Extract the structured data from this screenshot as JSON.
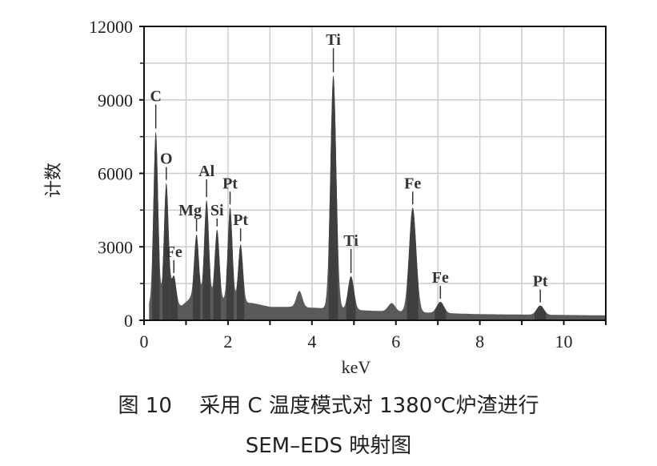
{
  "chart_data": {
    "type": "area",
    "title": "",
    "xlabel": "keV",
    "ylabel": "计数",
    "xlim": [
      0,
      11
    ],
    "ylim": [
      0,
      12000
    ],
    "x_ticks": [
      0,
      2,
      4,
      6,
      8,
      10
    ],
    "y_ticks": [
      0,
      3000,
      6000,
      9000,
      12000
    ],
    "grid": true,
    "legend": null,
    "peaks": [
      {
        "element": "C",
        "x": 0.28,
        "y": 7700
      },
      {
        "element": "O",
        "x": 0.53,
        "y": 5600
      },
      {
        "element": "Fe",
        "x": 0.71,
        "y": 1800
      },
      {
        "element": "Mg",
        "x": 1.25,
        "y": 3500
      },
      {
        "element": "Al",
        "x": 1.49,
        "y": 4900
      },
      {
        "element": "Si",
        "x": 1.74,
        "y": 3700
      },
      {
        "element": "Pt",
        "x": 2.05,
        "y": 4600
      },
      {
        "element": "Pt",
        "x": 2.3,
        "y": 3100
      },
      {
        "element": "Ti",
        "x": 4.51,
        "y": 10000
      },
      {
        "element": "Ti",
        "x": 4.93,
        "y": 1800
      },
      {
        "element": "Fe",
        "x": 6.4,
        "y": 4600
      },
      {
        "element": "Fe",
        "x": 7.06,
        "y": 750
      },
      {
        "element": "Pt",
        "x": 9.44,
        "y": 600
      }
    ],
    "unlabeled_peaks": [
      {
        "x": 3.7,
        "y": 1200
      },
      {
        "x": 5.9,
        "y": 700
      }
    ],
    "baseline": [
      {
        "x": 0.9,
        "y": 600
      },
      {
        "x": 1.1,
        "y": 900
      },
      {
        "x": 2.6,
        "y": 700
      },
      {
        "x": 3.0,
        "y": 550
      },
      {
        "x": 3.5,
        "y": 550
      },
      {
        "x": 4.2,
        "y": 500
      },
      {
        "x": 5.3,
        "y": 400
      },
      {
        "x": 6.0,
        "y": 350
      },
      {
        "x": 8.0,
        "y": 250
      },
      {
        "x": 11.0,
        "y": 200
      }
    ]
  },
  "caption": {
    "line1": "图 10　 采用 C 温度模式对 1380℃炉渣进行",
    "line2": "SEM–EDS 映射图"
  },
  "colors": {
    "fill": "#5a5a5a",
    "fill_dark": "#3f3f3f",
    "grid": "#cccccc",
    "axis": "#111111"
  }
}
